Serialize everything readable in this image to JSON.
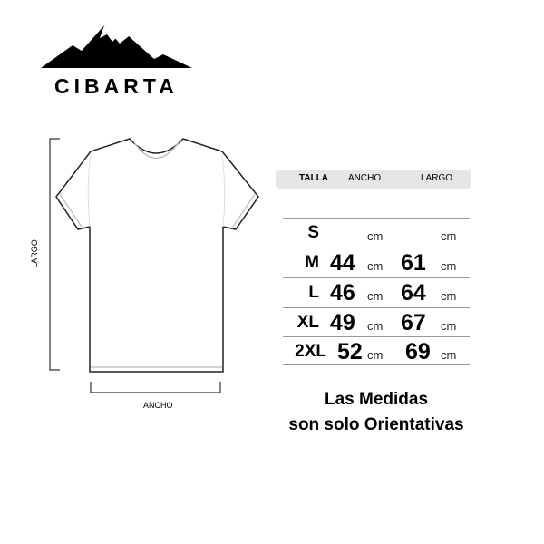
{
  "brand": {
    "name": "CIBARTA",
    "logo_icon": "mountain-icon"
  },
  "diagram": {
    "length_label": "LARGO",
    "width_label": "ANCHO"
  },
  "table": {
    "headers": {
      "size": "TALLA",
      "width": "ANCHO",
      "length": "LARGO"
    },
    "unit": "cm",
    "rows": [
      {
        "size": "S",
        "width": "",
        "length": ""
      },
      {
        "size": "M",
        "width": "44",
        "length": "61"
      },
      {
        "size": "L",
        "width": "46",
        "length": "64"
      },
      {
        "size": "XL",
        "width": "49",
        "length": "67"
      },
      {
        "size": "2XL",
        "width": "52",
        "length": "69"
      }
    ]
  },
  "note": {
    "line1": "Las Medidas",
    "line2": "son solo Orientativas"
  }
}
